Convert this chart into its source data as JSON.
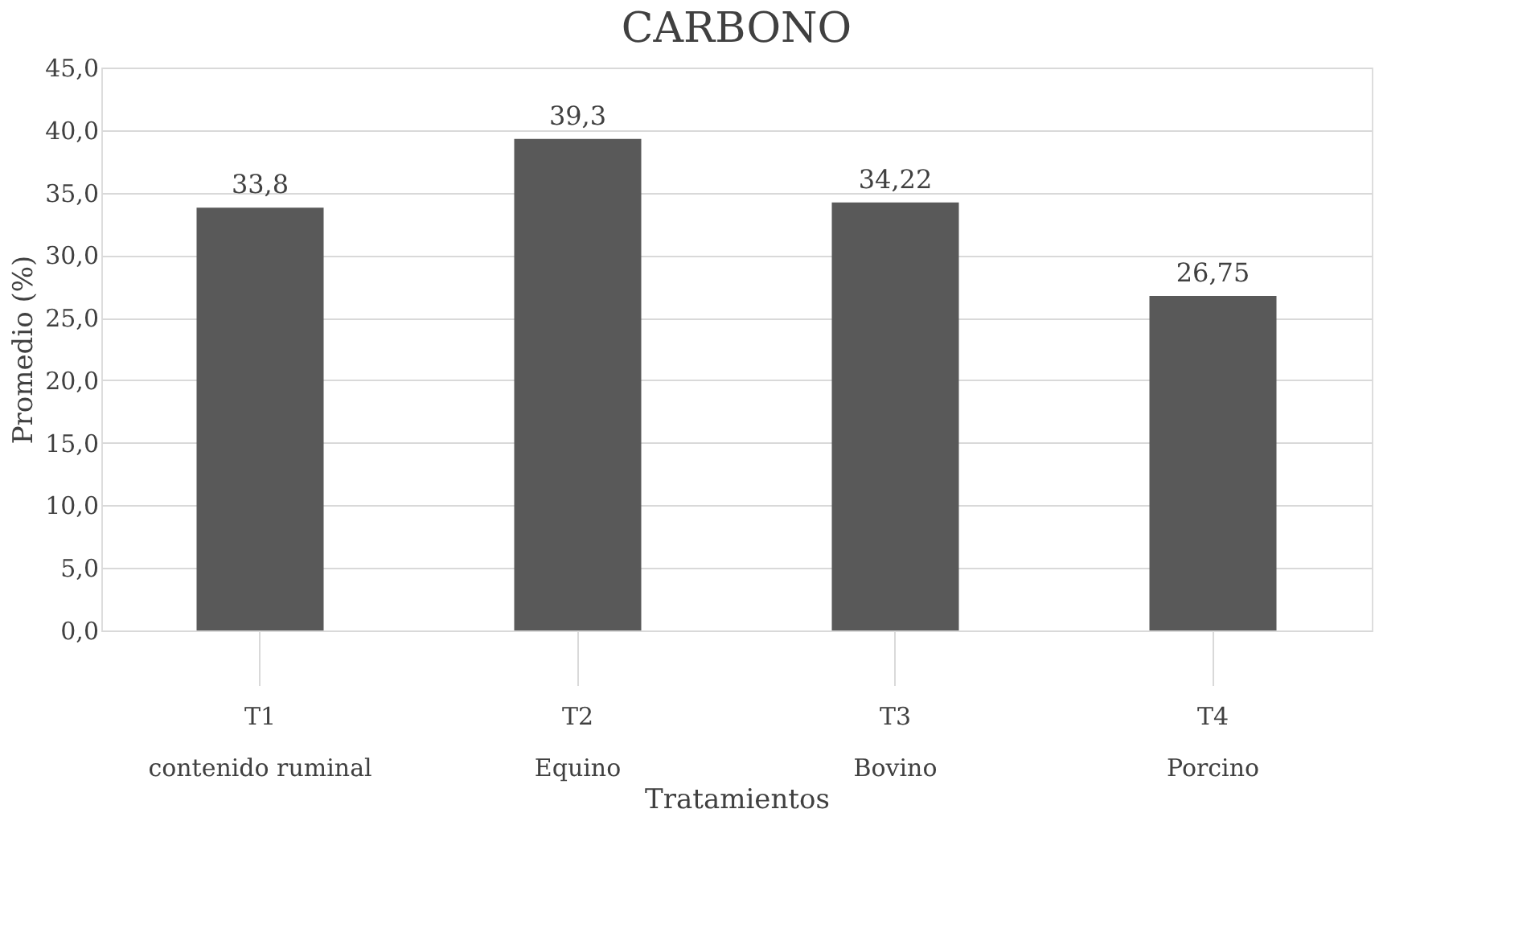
{
  "chart_data": {
    "type": "bar",
    "title": "CARBONO",
    "xlabel": "Tratamientos",
    "ylabel": "Promedio (%)",
    "categories": [
      "T1\ncontenido ruminal",
      "T2\nEquino",
      "T3\nBovino",
      "T4\nPorcino"
    ],
    "values": [
      33.8,
      39.3,
      34.22,
      26.75
    ],
    "color": "#595959",
    "value_labels": [
      "33,8",
      "39,3",
      "34,22",
      "26,75"
    ],
    "ylim": [
      0,
      45
    ],
    "yticks": [
      {
        "value": 0,
        "label": "0,0"
      },
      {
        "value": 5,
        "label": "5,0"
      },
      {
        "value": 10,
        "label": "10,0"
      },
      {
        "value": 15,
        "label": "15,0"
      },
      {
        "value": 20,
        "label": "20,0"
      },
      {
        "value": 25,
        "label": "25,0"
      },
      {
        "value": 30,
        "label": "30,0"
      },
      {
        "value": 35,
        "label": "35,0"
      },
      {
        "value": 40,
        "label": "40,0"
      },
      {
        "value": 45,
        "label": "45,0"
      }
    ],
    "grid": "y"
  }
}
